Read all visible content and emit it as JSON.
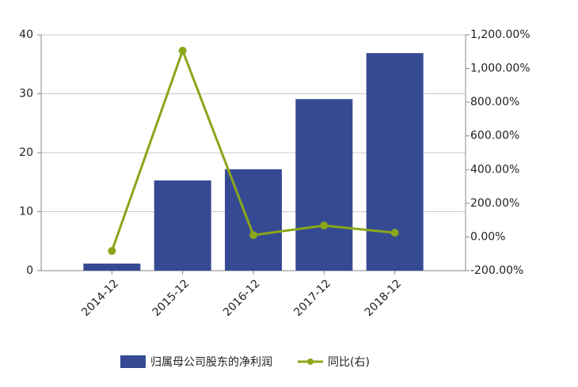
{
  "chart_data": {
    "type": "bar-line",
    "categories": [
      "2014-12",
      "2015-12",
      "2016-12",
      "2017-12",
      "2018-12"
    ],
    "series": [
      {
        "name": "归属母公司股东的净利润",
        "type": "bar",
        "color": "#364a94",
        "values": [
          1.2,
          15.3,
          17.2,
          29.1,
          36.9
        ]
      },
      {
        "name": "同比(右)",
        "type": "line",
        "axis": "y2",
        "color": "#8aa61a",
        "values": [
          -83,
          1106,
          11,
          68,
          25
        ]
      }
    ],
    "ylim": [
      0,
      40
    ],
    "yticks": [
      0,
      10,
      20,
      30,
      40
    ],
    "y2lim": [
      -200,
      1200
    ],
    "y2ticks": [
      {
        "value": -200,
        "label": "-200.00%"
      },
      {
        "value": 0,
        "label": "0.00%"
      },
      {
        "value": 200,
        "label": "200.00%"
      },
      {
        "value": 400,
        "label": "400.00%"
      },
      {
        "value": 600,
        "label": "600.00%"
      },
      {
        "value": 800,
        "label": "800.00%"
      },
      {
        "value": 1000,
        "label": "1,000.00%"
      },
      {
        "value": 1200,
        "label": "1,200.00%"
      }
    ],
    "grid": true
  }
}
